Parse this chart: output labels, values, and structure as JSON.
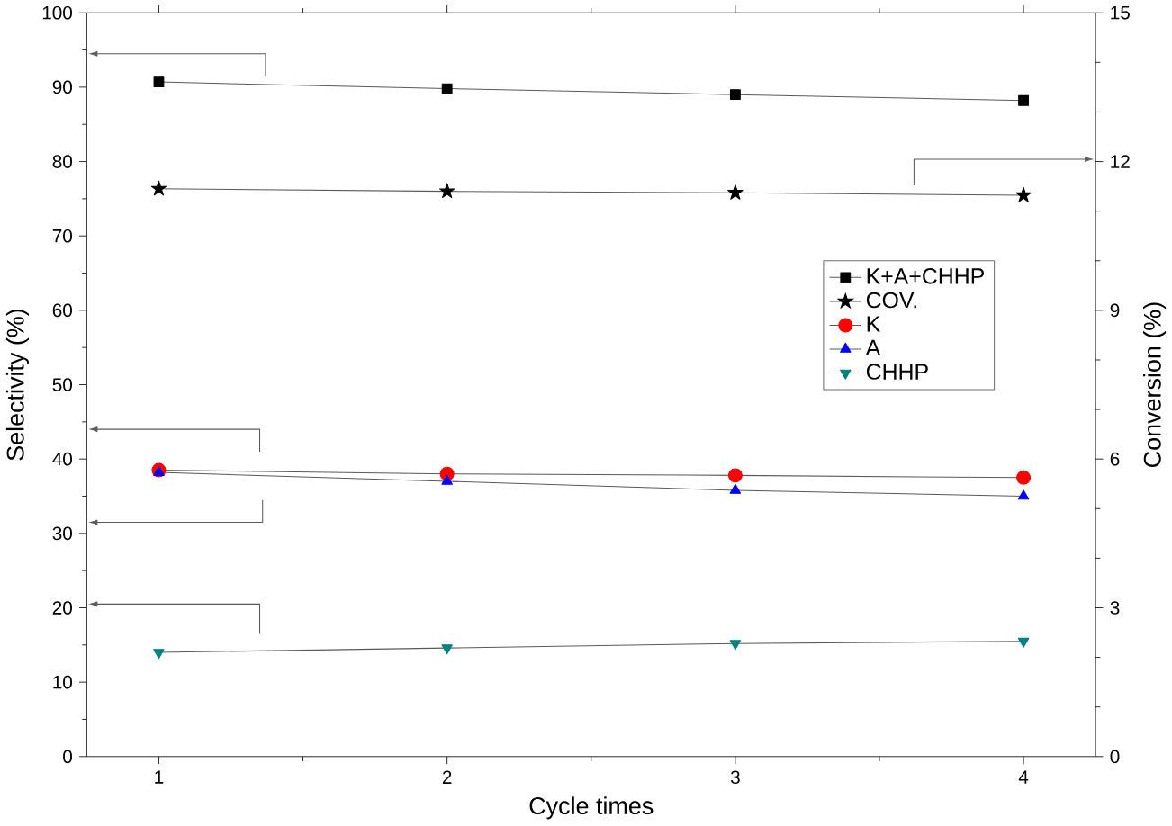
{
  "chart_data": {
    "type": "line",
    "xlabel": "Cycle times",
    "ylabel": "Selectivity (%)",
    "y2label": "Conversion (%)",
    "x": [
      1,
      2,
      3,
      4
    ],
    "xlim": [
      0.75,
      4.25
    ],
    "xticks": [
      1,
      2,
      3,
      4
    ],
    "ylim": [
      0,
      100
    ],
    "yticks": [
      0,
      10,
      20,
      30,
      40,
      50,
      60,
      70,
      80,
      90,
      100
    ],
    "y2lim": [
      0,
      15
    ],
    "y2ticks": [
      0,
      3,
      6,
      9,
      12,
      15
    ],
    "legend": "right",
    "grid": false,
    "series": [
      {
        "name": "K+A+CHHP",
        "color": "#000000",
        "marker": "square",
        "values": [
          90.7,
          89.8,
          89.0,
          88.2
        ]
      },
      {
        "name": "COV.",
        "color": "#000000",
        "marker": "star",
        "axis": "y2",
        "values": [
          11.45,
          11.4,
          11.37,
          11.32
        ]
      },
      {
        "name": "K",
        "color": "#ff0000",
        "marker": "circle",
        "values": [
          38.5,
          38.0,
          37.8,
          37.5
        ]
      },
      {
        "name": "A",
        "color": "#0000ff",
        "marker": "triangle",
        "values": [
          38.2,
          37.0,
          35.8,
          35.0
        ]
      },
      {
        "name": "CHHP",
        "color": "#008080",
        "marker": "triangle-down",
        "values": [
          14.0,
          14.6,
          15.2,
          15.5
        ]
      }
    ]
  }
}
